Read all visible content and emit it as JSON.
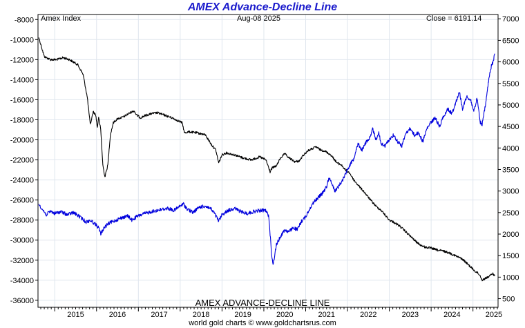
{
  "chart_data": {
    "type": "line",
    "title": "AMEX Advance-Decline Line",
    "subtitle": "Amex Index",
    "date_label": "Aug-08  2025",
    "close_label": "Close = 6191.14",
    "xlabel": "AMEX ADVANCE-DECLINE LINE",
    "credit": "world gold charts © www.goldchartsrus.com",
    "x_ticks": [
      "2015",
      "2016",
      "2017",
      "2018",
      "2019",
      "2020",
      "2021",
      "2022",
      "2023",
      "2024",
      "2025"
    ],
    "xlim": [
      2014.6,
      2025.6
    ],
    "left_axis": {
      "ylim": [
        -36700,
        -7500
      ],
      "ticks": [
        -8000,
        -10000,
        -12000,
        -14000,
        -16000,
        -18000,
        -20000,
        -22000,
        -24000,
        -26000,
        -28000,
        -30000,
        -32000,
        -34000,
        -36000
      ]
    },
    "right_axis": {
      "ylim": [
        300,
        7100
      ],
      "ticks": [
        7000,
        6500,
        6000,
        5500,
        5000,
        4500,
        4000,
        3500,
        3000,
        2500,
        2000,
        1500,
        1000,
        500
      ]
    },
    "grid": true,
    "series": [
      {
        "name": "AMEX Advance-Decline Line",
        "axis": "left",
        "color": "#000000",
        "points": [
          [
            2014.62,
            -9800
          ],
          [
            2014.75,
            -11700
          ],
          [
            2014.9,
            -12000
          ],
          [
            2015.05,
            -12000
          ],
          [
            2015.2,
            -11800
          ],
          [
            2015.35,
            -12000
          ],
          [
            2015.55,
            -12500
          ],
          [
            2015.68,
            -13500
          ],
          [
            2015.78,
            -15800
          ],
          [
            2015.85,
            -18500
          ],
          [
            2015.92,
            -17200
          ],
          [
            2015.98,
            -17500
          ],
          [
            2016.02,
            -18800
          ],
          [
            2016.05,
            -17700
          ],
          [
            2016.1,
            -19000
          ],
          [
            2016.15,
            -22500
          ],
          [
            2016.2,
            -23700
          ],
          [
            2016.27,
            -22500
          ],
          [
            2016.33,
            -19500
          ],
          [
            2016.4,
            -18300
          ],
          [
            2016.5,
            -17900
          ],
          [
            2016.65,
            -17700
          ],
          [
            2016.8,
            -17300
          ],
          [
            2016.9,
            -17100
          ],
          [
            2016.95,
            -17500
          ],
          [
            2017.05,
            -17800
          ],
          [
            2017.15,
            -17600
          ],
          [
            2017.3,
            -17400
          ],
          [
            2017.45,
            -17300
          ],
          [
            2017.6,
            -17500
          ],
          [
            2017.8,
            -17800
          ],
          [
            2017.95,
            -18100
          ],
          [
            2018.05,
            -18300
          ],
          [
            2018.1,
            -19300
          ],
          [
            2018.2,
            -19200
          ],
          [
            2018.4,
            -19300
          ],
          [
            2018.6,
            -19500
          ],
          [
            2018.75,
            -20500
          ],
          [
            2018.85,
            -21000
          ],
          [
            2018.92,
            -22300
          ],
          [
            2019.0,
            -21500
          ],
          [
            2019.1,
            -21300
          ],
          [
            2019.3,
            -21500
          ],
          [
            2019.5,
            -21800
          ],
          [
            2019.7,
            -22000
          ],
          [
            2019.9,
            -21700
          ],
          [
            2020.05,
            -22000
          ],
          [
            2020.15,
            -23200
          ],
          [
            2020.2,
            -22800
          ],
          [
            2020.3,
            -22600
          ],
          [
            2020.4,
            -21800
          ],
          [
            2020.5,
            -21400
          ],
          [
            2020.6,
            -21800
          ],
          [
            2020.75,
            -22200
          ],
          [
            2020.85,
            -22100
          ],
          [
            2020.95,
            -21500
          ],
          [
            2021.05,
            -21100
          ],
          [
            2021.15,
            -20900
          ],
          [
            2021.25,
            -20700
          ],
          [
            2021.35,
            -21000
          ],
          [
            2021.45,
            -21100
          ],
          [
            2021.6,
            -21500
          ],
          [
            2021.75,
            -22300
          ],
          [
            2021.85,
            -22500
          ],
          [
            2021.95,
            -23000
          ],
          [
            2022.05,
            -23300
          ],
          [
            2022.15,
            -24000
          ],
          [
            2022.25,
            -24500
          ],
          [
            2022.4,
            -25200
          ],
          [
            2022.55,
            -26000
          ],
          [
            2022.7,
            -26700
          ],
          [
            2022.8,
            -27000
          ],
          [
            2022.9,
            -27500
          ],
          [
            2023.0,
            -28000
          ],
          [
            2023.1,
            -28200
          ],
          [
            2023.25,
            -28600
          ],
          [
            2023.4,
            -29200
          ],
          [
            2023.55,
            -29800
          ],
          [
            2023.65,
            -30200
          ],
          [
            2023.75,
            -30500
          ],
          [
            2023.85,
            -30700
          ],
          [
            2024.0,
            -30800
          ],
          [
            2024.15,
            -31000
          ],
          [
            2024.3,
            -31100
          ],
          [
            2024.45,
            -31300
          ],
          [
            2024.6,
            -31600
          ],
          [
            2024.75,
            -31900
          ],
          [
            2024.85,
            -32300
          ],
          [
            2024.95,
            -32700
          ],
          [
            2025.05,
            -33100
          ],
          [
            2025.12,
            -33300
          ],
          [
            2025.18,
            -33600
          ],
          [
            2025.22,
            -34000
          ],
          [
            2025.3,
            -33800
          ],
          [
            2025.4,
            -33600
          ],
          [
            2025.47,
            -33300
          ],
          [
            2025.52,
            -33600
          ]
        ]
      },
      {
        "name": "Amex Index",
        "axis": "right",
        "color": "#0000dd",
        "points": [
          [
            2014.62,
            2700
          ],
          [
            2014.7,
            2580
          ],
          [
            2014.8,
            2450
          ],
          [
            2014.9,
            2530
          ],
          [
            2015.0,
            2480
          ],
          [
            2015.15,
            2520
          ],
          [
            2015.3,
            2450
          ],
          [
            2015.45,
            2500
          ],
          [
            2015.6,
            2400
          ],
          [
            2015.75,
            2280
          ],
          [
            2015.85,
            2320
          ],
          [
            2015.95,
            2250
          ],
          [
            2016.05,
            2150
          ],
          [
            2016.1,
            2000
          ],
          [
            2016.18,
            2150
          ],
          [
            2016.3,
            2250
          ],
          [
            2016.45,
            2320
          ],
          [
            2016.6,
            2380
          ],
          [
            2016.75,
            2420
          ],
          [
            2016.85,
            2320
          ],
          [
            2016.95,
            2400
          ],
          [
            2017.1,
            2460
          ],
          [
            2017.3,
            2520
          ],
          [
            2017.5,
            2560
          ],
          [
            2017.7,
            2600
          ],
          [
            2017.85,
            2550
          ],
          [
            2018.0,
            2650
          ],
          [
            2018.08,
            2700
          ],
          [
            2018.15,
            2600
          ],
          [
            2018.3,
            2500
          ],
          [
            2018.45,
            2620
          ],
          [
            2018.6,
            2650
          ],
          [
            2018.72,
            2600
          ],
          [
            2018.82,
            2480
          ],
          [
            2018.92,
            2300
          ],
          [
            2019.0,
            2450
          ],
          [
            2019.15,
            2550
          ],
          [
            2019.3,
            2600
          ],
          [
            2019.45,
            2520
          ],
          [
            2019.6,
            2480
          ],
          [
            2019.75,
            2520
          ],
          [
            2019.9,
            2550
          ],
          [
            2020.05,
            2550
          ],
          [
            2020.12,
            2400
          ],
          [
            2020.18,
            1600
          ],
          [
            2020.22,
            1280
          ],
          [
            2020.3,
            1750
          ],
          [
            2020.4,
            1950
          ],
          [
            2020.5,
            2100
          ],
          [
            2020.6,
            2050
          ],
          [
            2020.7,
            2150
          ],
          [
            2020.8,
            2100
          ],
          [
            2020.9,
            2300
          ],
          [
            2021.0,
            2400
          ],
          [
            2021.1,
            2600
          ],
          [
            2021.2,
            2750
          ],
          [
            2021.3,
            2850
          ],
          [
            2021.4,
            2950
          ],
          [
            2021.5,
            3100
          ],
          [
            2021.55,
            3300
          ],
          [
            2021.62,
            3200
          ],
          [
            2021.7,
            3000
          ],
          [
            2021.78,
            3100
          ],
          [
            2021.88,
            3250
          ],
          [
            2021.95,
            3400
          ],
          [
            2022.05,
            3600
          ],
          [
            2022.15,
            3750
          ],
          [
            2022.2,
            3950
          ],
          [
            2022.25,
            4100
          ],
          [
            2022.35,
            3950
          ],
          [
            2022.45,
            4150
          ],
          [
            2022.55,
            4250
          ],
          [
            2022.6,
            4450
          ],
          [
            2022.68,
            4200
          ],
          [
            2022.75,
            4350
          ],
          [
            2022.8,
            4100
          ],
          [
            2022.9,
            4050
          ],
          [
            2023.0,
            4200
          ],
          [
            2023.1,
            4300
          ],
          [
            2023.2,
            4150
          ],
          [
            2023.3,
            4050
          ],
          [
            2023.4,
            4350
          ],
          [
            2023.5,
            4450
          ],
          [
            2023.6,
            4300
          ],
          [
            2023.7,
            4350
          ],
          [
            2023.8,
            4150
          ],
          [
            2023.9,
            4450
          ],
          [
            2024.0,
            4600
          ],
          [
            2024.1,
            4700
          ],
          [
            2024.2,
            4500
          ],
          [
            2024.3,
            4750
          ],
          [
            2024.4,
            4900
          ],
          [
            2024.5,
            4800
          ],
          [
            2024.6,
            5100
          ],
          [
            2024.68,
            5300
          ],
          [
            2024.75,
            4900
          ],
          [
            2024.85,
            5200
          ],
          [
            2024.95,
            5100
          ],
          [
            2025.02,
            4850
          ],
          [
            2025.1,
            5150
          ],
          [
            2025.17,
            4600
          ],
          [
            2025.22,
            4550
          ],
          [
            2025.3,
            5000
          ],
          [
            2025.38,
            5600
          ],
          [
            2025.44,
            5900
          ],
          [
            2025.48,
            6000
          ],
          [
            2025.52,
            6191
          ]
        ]
      }
    ]
  }
}
